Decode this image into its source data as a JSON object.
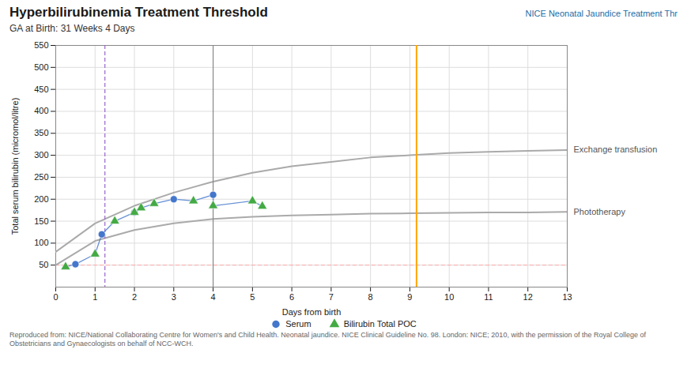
{
  "chart_data": {
    "type": "line",
    "title": "Hyperbilirubinemia Treatment Threshold",
    "subtitle": "GA at Birth: 31 Weeks 4 Days",
    "xlabel": "Days from birth",
    "ylabel": "Total serum bilirubin (micromol/litre)",
    "xlim": [
      0,
      13
    ],
    "ylim": [
      0,
      550
    ],
    "xticks": [
      0,
      1,
      2,
      3,
      4,
      5,
      6,
      7,
      8,
      9,
      10,
      11,
      12,
      13
    ],
    "yticks": [
      50,
      100,
      150,
      200,
      250,
      300,
      350,
      400,
      450,
      500,
      550
    ],
    "grid": true,
    "series": [
      {
        "name": "Phototherapy",
        "type": "line",
        "color": "#aaaaaa",
        "x": [
          0,
          1,
          2,
          3,
          4,
          5,
          6,
          7,
          8,
          9,
          10,
          11,
          12,
          13
        ],
        "values": [
          50,
          105,
          130,
          145,
          155,
          160,
          163,
          165,
          167,
          168,
          169,
          170,
          170,
          171
        ]
      },
      {
        "name": "Exchange transfusion",
        "type": "line",
        "color": "#aaaaaa",
        "x": [
          0,
          1,
          2,
          3,
          4,
          5,
          6,
          7,
          8,
          9,
          10,
          11,
          12,
          13
        ],
        "values": [
          80,
          145,
          185,
          215,
          240,
          260,
          275,
          285,
          295,
          300,
          305,
          308,
          310,
          312
        ]
      },
      {
        "type": "line",
        "color": "#4477cc",
        "x": [
          0.25,
          0.5,
          1.0,
          1.17,
          1.5,
          2.0,
          2.0,
          2.17,
          2.5,
          3.0,
          3.5,
          4.0,
          4.0,
          5.0,
          5.25
        ],
        "values": [
          46,
          52,
          75,
          120,
          150,
          170,
          170,
          180,
          190,
          200,
          196,
          210,
          185,
          196,
          184
        ]
      },
      {
        "name": "Serum",
        "type": "scatter",
        "color": "#4477cc",
        "marker": "circle",
        "x": [
          0.5,
          1.17,
          2.0,
          3.0,
          4.0
        ],
        "values": [
          52,
          120,
          170,
          200,
          210
        ]
      },
      {
        "name": "Bilirubin Total POC",
        "type": "scatter",
        "color": "#44aa44",
        "marker": "triangle",
        "x": [
          0.25,
          1.0,
          1.5,
          2.0,
          2.17,
          2.5,
          3.5,
          4.0,
          5.0,
          5.25
        ],
        "values": [
          46,
          75,
          150,
          170,
          180,
          190,
          196,
          185,
          196,
          184
        ]
      }
    ],
    "vlines": [
      {
        "x": 1.25,
        "color": "#9966cc",
        "line_style": "dashed"
      },
      {
        "x": 4.0,
        "color": "#888888",
        "line_style": "solid"
      },
      {
        "x": 9.17,
        "color": "#ffa500",
        "line_style": "solid"
      }
    ],
    "hlines": [
      {
        "y": 50,
        "color": "#ffaaaa",
        "line_style": "dashed"
      }
    ],
    "annotations": [
      "NICE Neonatal Jaundice Treatment Thr",
      "Reproduced from: NICE/National Collaborating Centre for Women's and Child Health. Neonatal jaundice. NICE Clinical Guideline No. 98. London: NICE; 2010, with the permission of the Royal College of Obstetricians and Gynaecologists on behalf of NCC-WCH."
    ]
  }
}
